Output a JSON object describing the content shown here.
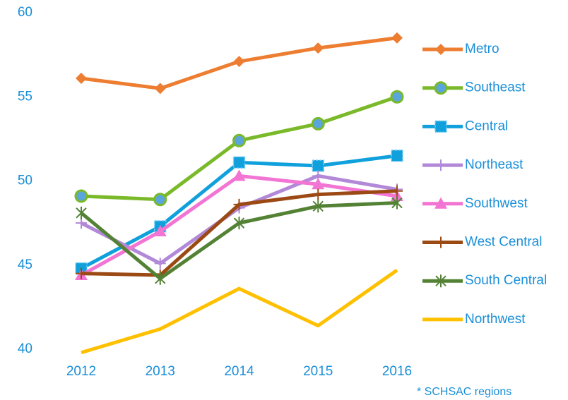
{
  "chart_data": {
    "type": "line",
    "x": [
      2012,
      2013,
      2014,
      2015,
      2016
    ],
    "xlim": [
      2012,
      2016
    ],
    "ylim": [
      40,
      60
    ],
    "yticks": [
      40,
      45,
      50,
      55,
      60
    ],
    "grid": false,
    "legend": "right",
    "footnote": "* SCHSAC regions",
    "series": [
      {
        "name": "Metro",
        "color": "#ed7d31",
        "marker": "diamond",
        "values": [
          56.1,
          55.5,
          57.1,
          57.9,
          58.5
        ]
      },
      {
        "name": "Southeast",
        "color": "#7ab929",
        "marker": "circle",
        "values": [
          49.1,
          48.9,
          52.4,
          53.4,
          55.0
        ]
      },
      {
        "name": "Central",
        "color": "#10a0dc",
        "marker": "square",
        "values": [
          44.8,
          47.3,
          51.1,
          50.9,
          51.5
        ]
      },
      {
        "name": "Northeast",
        "color": "#b288d8",
        "marker": "plus",
        "values": [
          47.5,
          45.1,
          48.4,
          50.3,
          49.5
        ]
      },
      {
        "name": "Southwest",
        "color": "#f274d3",
        "marker": "triangle",
        "values": [
          44.4,
          47.0,
          50.3,
          49.8,
          49.1
        ]
      },
      {
        "name": "West Central",
        "color": "#9c4a14",
        "marker": "plus",
        "values": [
          44.5,
          44.4,
          48.6,
          49.2,
          49.4
        ]
      },
      {
        "name": "South Central",
        "color": "#548235",
        "marker": "star",
        "values": [
          48.1,
          44.2,
          47.5,
          48.5,
          48.7
        ]
      },
      {
        "name": "Northwest",
        "color": "#ffc000",
        "marker": "none",
        "values": [
          39.8,
          41.2,
          43.6,
          41.4,
          44.7
        ]
      }
    ]
  }
}
